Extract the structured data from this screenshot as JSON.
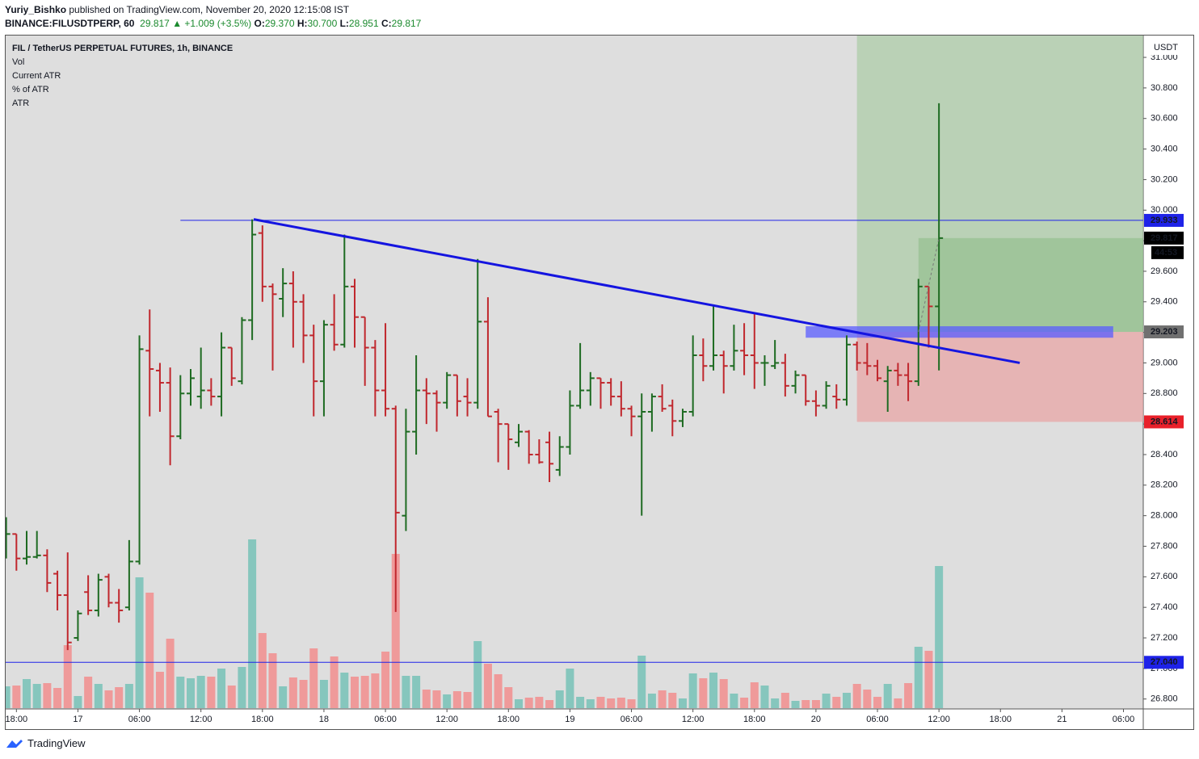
{
  "header": {
    "author": "Yuriy_Bishko",
    "published": "published on TradingView.com, November 20, 2020 12:15:08 IST",
    "symbol": "BINANCE:FILUSDTPERP, 60",
    "price": "29.817",
    "change": "▲ +1.009 (+3.5%)",
    "ohlc": [
      {
        "label": "O:",
        "value": "29.370"
      },
      {
        "label": "H:",
        "value": "30.700"
      },
      {
        "label": "L:",
        "value": "28.951"
      },
      {
        "label": "C:",
        "value": "29.817"
      }
    ]
  },
  "footer": "TradingView",
  "chart_data": {
    "type": "ohlc",
    "legend": [
      "FIL / TetherUS PERPETUAL FUTURES, 1h, BINANCE",
      "Vol",
      "Current ATR",
      "% of ATR",
      "ATR"
    ],
    "currency": "USDT",
    "colors": {
      "up": "#1e6b22",
      "down": "#c0272d",
      "vol_up": "#86c6bd",
      "vol_down": "#ef9a9a"
    },
    "open": [
      27.75,
      27.88,
      27.72,
      27.73,
      27.74,
      27.62,
      27.48,
      27.2,
      27.5,
      27.38,
      27.6,
      27.43,
      27.4,
      27.7,
      29.08,
      28.95,
      28.87,
      28.52,
      28.8,
      28.78,
      28.82,
      28.78,
      29.1,
      28.88,
      29.28,
      29.85,
      29.5,
      29.42,
      29.52,
      29.4,
      29.18,
      28.88,
      29.25,
      29.12,
      29.5,
      29.3,
      29.1,
      28.82,
      28.7,
      28.0,
      28.55,
      28.82,
      28.8,
      28.74,
      28.92,
      28.78,
      28.74,
      29.27,
      28.68,
      28.6,
      28.48,
      28.55,
      28.4,
      28.48,
      28.3,
      28.45,
      28.72,
      28.82,
      28.9,
      28.87,
      28.78,
      28.7,
      28.65,
      28.68,
      28.78,
      28.72,
      28.62,
      28.68,
      29.05,
      28.98,
      29.05,
      28.98,
      29.08,
      29.05,
      29.0,
      28.98,
      29.0,
      28.85,
      28.92,
      28.75,
      28.72,
      28.78,
      28.76,
      29.12,
      29.0,
      28.98,
      28.88,
      28.95,
      28.92,
      28.88,
      29.5,
      29.37
    ],
    "high": [
      27.99,
      27.88,
      27.9,
      27.9,
      27.78,
      27.64,
      27.76,
      27.38,
      27.61,
      27.62,
      27.62,
      27.52,
      27.84,
      29.18,
      29.35,
      29.0,
      28.97,
      28.92,
      28.96,
      29.1,
      28.9,
      29.2,
      29.1,
      29.3,
      29.94,
      29.9,
      29.52,
      29.62,
      29.6,
      29.45,
      29.25,
      29.28,
      29.45,
      29.84,
      29.55,
      29.3,
      29.15,
      29.26,
      28.72,
      28.7,
      29.05,
      28.9,
      28.82,
      28.94,
      28.92,
      28.9,
      29.68,
      29.43,
      28.7,
      28.6,
      28.6,
      28.56,
      28.5,
      28.55,
      28.52,
      28.82,
      29.13,
      28.94,
      28.9,
      28.9,
      28.88,
      28.72,
      28.8,
      28.8,
      28.86,
      28.76,
      28.7,
      29.18,
      29.16,
      29.37,
      29.08,
      29.25,
      29.26,
      29.32,
      29.05,
      29.15,
      29.06,
      28.95,
      28.92,
      28.82,
      28.88,
      28.86,
      29.18,
      29.14,
      29.13,
      29.02,
      28.98,
      29.0,
      29.0,
      29.55,
      29.5,
      30.7
    ],
    "low": [
      27.72,
      27.64,
      27.68,
      27.72,
      27.5,
      27.38,
      27.12,
      27.18,
      27.35,
      27.34,
      27.4,
      27.3,
      27.38,
      27.68,
      28.65,
      28.68,
      28.33,
      28.5,
      28.72,
      28.7,
      28.72,
      28.65,
      28.85,
      28.86,
      29.15,
      29.4,
      28.95,
      29.3,
      29.1,
      29.0,
      28.65,
      28.65,
      29.08,
      29.1,
      29.1,
      28.85,
      28.65,
      28.65,
      27.37,
      27.9,
      28.4,
      28.6,
      28.55,
      28.7,
      28.65,
      28.65,
      28.7,
      28.65,
      28.35,
      28.3,
      28.45,
      28.34,
      28.34,
      28.22,
      28.26,
      28.4,
      28.7,
      28.72,
      28.7,
      28.72,
      28.65,
      28.52,
      28.0,
      28.55,
      28.68,
      28.52,
      28.58,
      28.65,
      28.88,
      28.95,
      28.8,
      28.95,
      28.92,
      28.83,
      28.85,
      28.96,
      28.78,
      28.8,
      28.72,
      28.65,
      28.7,
      28.7,
      28.72,
      28.95,
      28.92,
      28.88,
      28.68,
      28.85,
      28.75,
      28.85,
      29.1,
      28.951
    ],
    "close": [
      27.88,
      27.72,
      27.73,
      27.74,
      27.56,
      27.48,
      27.17,
      27.36,
      27.38,
      27.58,
      27.43,
      27.38,
      27.7,
      29.09,
      28.96,
      28.87,
      28.52,
      28.8,
      28.9,
      28.82,
      28.78,
      29.1,
      28.9,
      29.28,
      29.84,
      29.5,
      29.45,
      29.52,
      29.4,
      29.18,
      28.88,
      29.25,
      29.12,
      29.5,
      29.3,
      29.1,
      28.82,
      28.7,
      28.02,
      28.55,
      28.82,
      28.8,
      28.74,
      28.92,
      28.75,
      28.74,
      29.27,
      28.65,
      28.6,
      28.5,
      28.55,
      28.4,
      28.35,
      28.34,
      28.45,
      28.72,
      28.82,
      28.9,
      28.87,
      28.78,
      28.7,
      28.65,
      28.68,
      28.78,
      28.7,
      28.62,
      28.68,
      29.05,
      28.98,
      29.05,
      28.98,
      29.08,
      29.05,
      29.0,
      29.0,
      29.0,
      28.85,
      28.92,
      28.75,
      28.72,
      28.85,
      28.76,
      29.12,
      29.0,
      28.98,
      28.9,
      28.95,
      28.92,
      28.88,
      29.5,
      29.37,
      29.817
    ],
    "volume": [
      27,
      28,
      36,
      30,
      31,
      25,
      78,
      15,
      39,
      30,
      22,
      26,
      30,
      162,
      143,
      45,
      86,
      39,
      37,
      40,
      39,
      49,
      28,
      51,
      209,
      93,
      68,
      27,
      38,
      35,
      74,
      35,
      64,
      44,
      39,
      40,
      43,
      70,
      191,
      40,
      40,
      23,
      22,
      17,
      21,
      20,
      83,
      55,
      42,
      26,
      11,
      13,
      14,
      10,
      22,
      49,
      14,
      11,
      14,
      12,
      13,
      11,
      65,
      18,
      22,
      19,
      12,
      43,
      37,
      44,
      36,
      18,
      13,
      32,
      28,
      12,
      19,
      9,
      10,
      10,
      18,
      14,
      19,
      30,
      23,
      14,
      30,
      12,
      31,
      76,
      71,
      176
    ],
    "xlim": [
      -0.05,
      110.93
    ],
    "xticks": [
      {
        "value": 1,
        "label": "18:00"
      },
      {
        "value": 7,
        "label": "17"
      },
      {
        "value": 13,
        "label": "06:00"
      },
      {
        "value": 19,
        "label": "12:00"
      },
      {
        "value": 25,
        "label": "18:00"
      },
      {
        "value": 31,
        "label": "18"
      },
      {
        "value": 37,
        "label": "06:00"
      },
      {
        "value": 43,
        "label": "12:00"
      },
      {
        "value": 49,
        "label": "18:00"
      },
      {
        "value": 55,
        "label": "19"
      },
      {
        "value": 61,
        "label": "06:00"
      },
      {
        "value": 67,
        "label": "12:00"
      },
      {
        "value": 73,
        "label": "18:00"
      },
      {
        "value": 79,
        "label": "20"
      },
      {
        "value": 85,
        "label": "06:00"
      },
      {
        "value": 91,
        "label": "12:00"
      },
      {
        "value": 97,
        "label": "18:00"
      },
      {
        "value": 103,
        "label": "21"
      },
      {
        "value": 109,
        "label": "06:00"
      }
    ],
    "ylim": [
      26.735,
      31.143
    ],
    "yticks": [
      {
        "value": 26.8,
        "label": "26.800"
      },
      {
        "value": 27.0,
        "label": "27.000"
      },
      {
        "value": 27.2,
        "label": "27.200"
      },
      {
        "value": 27.4,
        "label": "27.400"
      },
      {
        "value": 27.6,
        "label": "27.600"
      },
      {
        "value": 27.8,
        "label": "27.800"
      },
      {
        "value": 28.0,
        "label": "28.000"
      },
      {
        "value": 28.2,
        "label": "28.200"
      },
      {
        "value": 28.4,
        "label": "28.400"
      },
      {
        "value": 28.6,
        "label": "28.600"
      },
      {
        "value": 28.8,
        "label": "28.800"
      },
      {
        "value": 29.0,
        "label": "29.000"
      },
      {
        "value": 29.2,
        "label": "29.200"
      },
      {
        "value": 29.4,
        "label": "29.400"
      },
      {
        "value": 29.6,
        "label": "29.600"
      },
      {
        "value": 29.8,
        "label": "29.800"
      },
      {
        "value": 30.0,
        "label": "30.000"
      },
      {
        "value": 30.2,
        "label": "30.200"
      },
      {
        "value": 30.4,
        "label": "30.400"
      },
      {
        "value": 30.6,
        "label": "30.600"
      },
      {
        "value": 30.8,
        "label": "30.800"
      },
      {
        "value": 31.0,
        "label": "31.000"
      }
    ],
    "levels": [
      {
        "value": 29.933,
        "color": "#1e22e8",
        "from": 17
      },
      {
        "value": 29.817,
        "color": "#000000",
        "countdown": "44:53"
      },
      {
        "value": 29.203,
        "color": "#707070"
      },
      {
        "value": 28.614,
        "color": "#e8202a"
      },
      {
        "value": 27.04,
        "label": "27.040",
        "color": "#1e22e8"
      }
    ],
    "position": {
      "start": 83,
      "entry": 29.203,
      "stop": 28.614,
      "target": 31.2,
      "fill_start": 89,
      "current": 29.817
    },
    "zone": {
      "x": [
        78,
        108
      ],
      "y": [
        29.165,
        29.24
      ]
    },
    "trendline": {
      "x": [
        24.15,
        98.88
      ],
      "y": [
        29.94,
        29.0
      ]
    },
    "projection": {
      "x": [
        89,
        91
      ],
      "y": [
        29.203,
        29.817
      ]
    }
  }
}
